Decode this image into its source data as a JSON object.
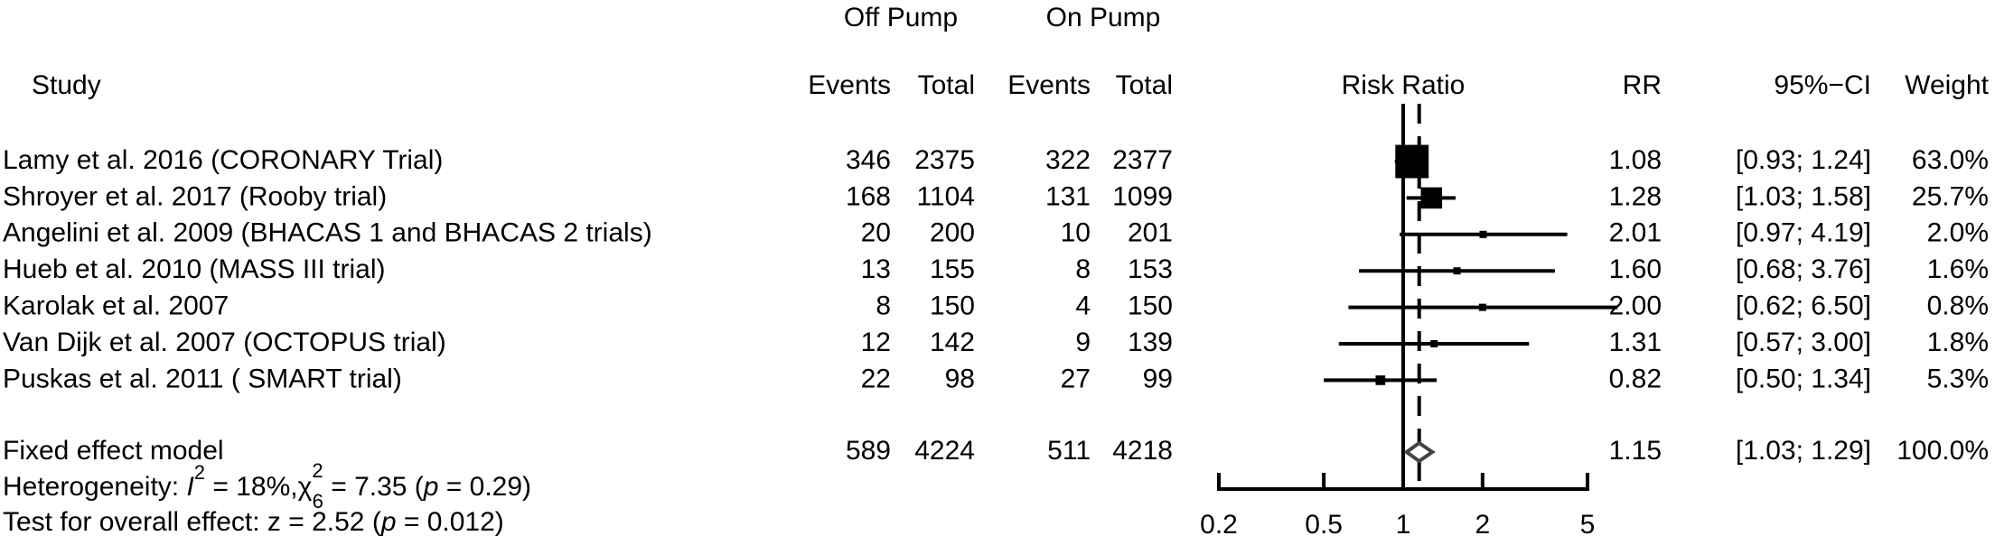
{
  "chart_data": {
    "type": "forest",
    "group_headers": [
      "Off Pump",
      "On Pump"
    ],
    "columns": [
      "Study",
      "Events",
      "Total",
      "Events",
      "Total",
      "Risk Ratio",
      "RR",
      "95%−CI",
      "Weight"
    ],
    "studies": [
      {
        "study": "Lamy et al. 2016 (CORONARY Trial)",
        "events_off": 346,
        "total_off": 2375,
        "events_on": 322,
        "total_on": 2377,
        "rr": 1.08,
        "rr_label": "1.08",
        "ci_low": 0.93,
        "ci_high": 1.24,
        "ci_label": "[0.93; 1.24]",
        "weight": 63.0,
        "weight_label": "63.0%"
      },
      {
        "study": "Shroyer et al. 2017 (Rooby trial)",
        "events_off": 168,
        "total_off": 1104,
        "events_on": 131,
        "total_on": 1099,
        "rr": 1.28,
        "rr_label": "1.28",
        "ci_low": 1.03,
        "ci_high": 1.58,
        "ci_label": "[1.03; 1.58]",
        "weight": 25.7,
        "weight_label": "25.7%"
      },
      {
        "study": "Angelini et al. 2009 (BHACAS 1 and BHACAS 2 trials)",
        "events_off": 20,
        "total_off": 200,
        "events_on": 10,
        "total_on": 201,
        "rr": 2.01,
        "rr_label": "2.01",
        "ci_low": 0.97,
        "ci_high": 4.19,
        "ci_label": "[0.97; 4.19]",
        "weight": 2.0,
        "weight_label": "2.0%"
      },
      {
        "study": "Hueb et al. 2010 (MASS III trial)",
        "events_off": 13,
        "total_off": 155,
        "events_on": 8,
        "total_on": 153,
        "rr": 1.6,
        "rr_label": "1.60",
        "ci_low": 0.68,
        "ci_high": 3.76,
        "ci_label": "[0.68; 3.76]",
        "weight": 1.6,
        "weight_label": "1.6%"
      },
      {
        "study": "Karolak et al. 2007",
        "events_off": 8,
        "total_off": 150,
        "events_on": 4,
        "total_on": 150,
        "rr": 2.0,
        "rr_label": "2.00",
        "ci_low": 0.62,
        "ci_high": 6.5,
        "ci_label": "[0.62; 6.50]",
        "weight": 0.8,
        "weight_label": "0.8%"
      },
      {
        "study": "Van Dijk et al. 2007 (OCTOPUS trial)",
        "events_off": 12,
        "total_off": 142,
        "events_on": 9,
        "total_on": 139,
        "rr": 1.31,
        "rr_label": "1.31",
        "ci_low": 0.57,
        "ci_high": 3.0,
        "ci_label": "[0.57; 3.00]",
        "weight": 1.8,
        "weight_label": "1.8%"
      },
      {
        "study": "Puskas et al. 2011 ( SMART trial)",
        "events_off": 22,
        "total_off": 98,
        "events_on": 27,
        "total_on": 99,
        "rr": 0.82,
        "rr_label": "0.82",
        "ci_low": 0.5,
        "ci_high": 1.34,
        "ci_label": "[0.50; 1.34]",
        "weight": 5.3,
        "weight_label": "5.3%"
      }
    ],
    "overall": {
      "study": "Fixed effect model",
      "events_off": 589,
      "total_off": 4224,
      "events_on": 511,
      "total_on": 4218,
      "rr": 1.15,
      "rr_label": "1.15",
      "ci_low": 1.03,
      "ci_high": 1.29,
      "ci_label": "[1.03; 1.29]",
      "weight": 100.0,
      "weight_label": "100.0%"
    },
    "heterogeneity": {
      "label": "Heterogeneity: ",
      "i2": "I",
      "i2_sup": "2",
      "i2_value": " = 18%,",
      "chi": "χ",
      "chi_sup": "2",
      "chi_sub": "6",
      "chi_value": " = 7.35 (",
      "p": "p",
      "p_value": " = 0.29)"
    },
    "overall_test": {
      "label": "Test for overall effect: z = 2.52 (",
      "p": "p",
      "p_value": " = 0.012)"
    },
    "xscale": "log",
    "xlim": [
      0.2,
      5
    ],
    "xticks": [
      0.2,
      0.5,
      1,
      2,
      5
    ],
    "reference": 1,
    "color": "#000000"
  }
}
